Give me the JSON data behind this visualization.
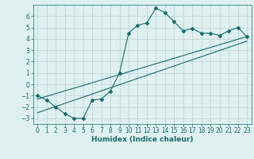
{
  "background_color": "#dff0f0",
  "grid_color": "#c0d8d8",
  "line_color": "#1a6b6b",
  "xlabel": "Humidex (Indice chaleur)",
  "xlim": [
    -0.5,
    23.5
  ],
  "ylim": [
    -3.5,
    7.0
  ],
  "yticks": [
    -3,
    -2,
    -1,
    0,
    1,
    2,
    3,
    4,
    5,
    6
  ],
  "xticks": [
    0,
    1,
    2,
    3,
    4,
    5,
    6,
    7,
    8,
    9,
    10,
    11,
    12,
    13,
    14,
    15,
    16,
    17,
    18,
    19,
    20,
    21,
    22,
    23
  ],
  "line1_x": [
    0,
    1,
    2,
    3,
    4,
    5,
    6,
    7,
    8,
    9,
    10,
    11,
    12,
    13,
    14,
    15,
    16,
    17,
    18,
    19,
    20,
    21,
    22,
    23
  ],
  "line1_y": [
    -1.0,
    -1.4,
    -2.0,
    -2.6,
    -3.0,
    -3.0,
    -1.4,
    -1.3,
    -0.6,
    1.0,
    4.5,
    5.2,
    5.4,
    6.7,
    6.3,
    5.5,
    4.7,
    4.9,
    4.5,
    4.5,
    4.3,
    4.7,
    5.0,
    4.2
  ],
  "line2_x": [
    0,
    23
  ],
  "line2_y": [
    -1.3,
    4.2
  ],
  "line3_x": [
    0,
    23
  ],
  "line3_y": [
    -2.5,
    3.8
  ],
  "xlabel_fontsize": 6.5,
  "tick_fontsize": 5.5,
  "title_fontsize": 7
}
